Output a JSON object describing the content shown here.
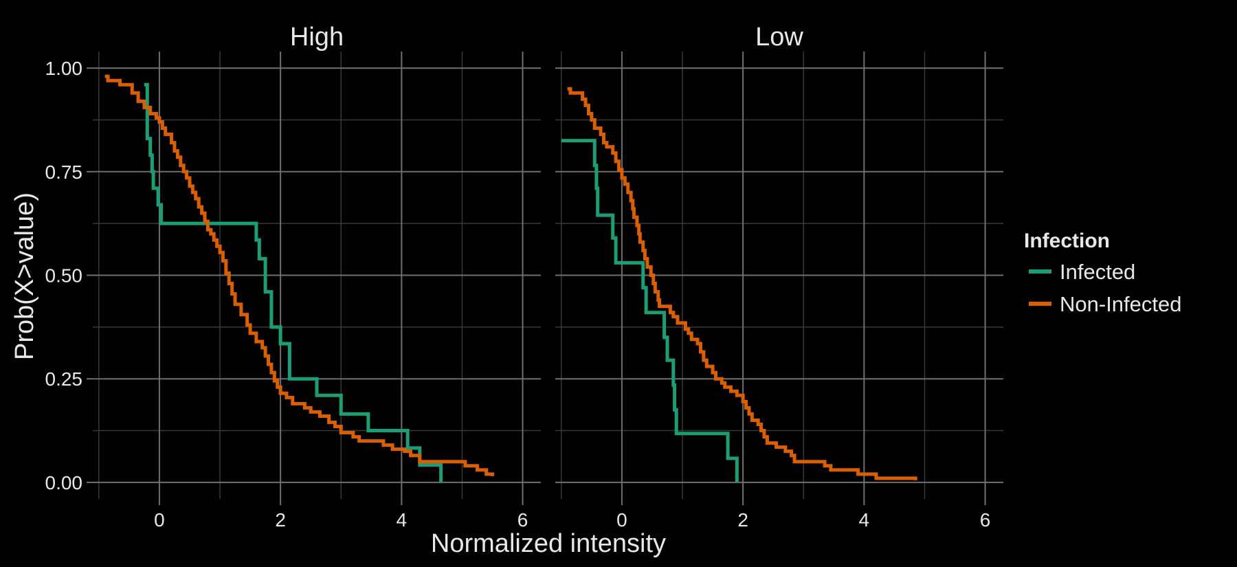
{
  "chart_data": {
    "type": "line",
    "step": true,
    "xlabel": "Normalized intensity",
    "ylabel": "Prob(X>value)",
    "xlim": [
      -1.1,
      6.3
    ],
    "ylim": [
      -0.04,
      1.04
    ],
    "xticks": [
      0,
      2,
      4,
      6
    ],
    "yticks": [
      0.0,
      0.25,
      0.5,
      0.75,
      1.0
    ],
    "ytick_labels": [
      "0.00",
      "0.25",
      "0.50",
      "0.75",
      "1.00"
    ],
    "grid": true,
    "legend": {
      "title": "Infection",
      "position": "right",
      "entries": [
        {
          "name": "Infected",
          "color": "#1b9e77"
        },
        {
          "name": "Non-Infected",
          "color": "#d95f02"
        }
      ]
    },
    "facets": [
      {
        "title": "High",
        "series": [
          {
            "name": "Infected",
            "color": "#1b9e77",
            "points": [
              [
                -0.25,
                0.96
              ],
              [
                -0.2,
                0.83
              ],
              [
                -0.15,
                0.79
              ],
              [
                -0.12,
                0.75
              ],
              [
                -0.1,
                0.71
              ],
              [
                -0.02,
                0.67
              ],
              [
                0.03,
                0.625
              ],
              [
                1.6,
                0.585
              ],
              [
                1.65,
                0.54
              ],
              [
                1.75,
                0.46
              ],
              [
                1.85,
                0.375
              ],
              [
                2.0,
                0.335
              ],
              [
                2.15,
                0.25
              ],
              [
                2.6,
                0.21
              ],
              [
                3.0,
                0.165
              ],
              [
                3.45,
                0.125
              ],
              [
                4.1,
                0.083
              ],
              [
                4.3,
                0.042
              ],
              [
                4.65,
                0.0
              ]
            ]
          },
          {
            "name": "Non-Infected",
            "color": "#d95f02",
            "points": [
              [
                -0.9,
                0.98
              ],
              [
                -0.85,
                0.97
              ],
              [
                -0.65,
                0.96
              ],
              [
                -0.45,
                0.94
              ],
              [
                -0.35,
                0.92
              ],
              [
                -0.25,
                0.905
              ],
              [
                -0.15,
                0.89
              ],
              [
                -0.05,
                0.88
              ],
              [
                0.0,
                0.87
              ],
              [
                0.05,
                0.855
              ],
              [
                0.1,
                0.84
              ],
              [
                0.2,
                0.82
              ],
              [
                0.25,
                0.8
              ],
              [
                0.3,
                0.785
              ],
              [
                0.35,
                0.765
              ],
              [
                0.4,
                0.75
              ],
              [
                0.45,
                0.735
              ],
              [
                0.5,
                0.715
              ],
              [
                0.55,
                0.7
              ],
              [
                0.6,
                0.685
              ],
              [
                0.65,
                0.665
              ],
              [
                0.7,
                0.65
              ],
              [
                0.75,
                0.63
              ],
              [
                0.8,
                0.61
              ],
              [
                0.85,
                0.6
              ],
              [
                0.9,
                0.585
              ],
              [
                0.95,
                0.57
              ],
              [
                1.0,
                0.555
              ],
              [
                1.05,
                0.535
              ],
              [
                1.1,
                0.505
              ],
              [
                1.15,
                0.48
              ],
              [
                1.2,
                0.455
              ],
              [
                1.25,
                0.43
              ],
              [
                1.35,
                0.405
              ],
              [
                1.45,
                0.38
              ],
              [
                1.5,
                0.36
              ],
              [
                1.6,
                0.34
              ],
              [
                1.7,
                0.325
              ],
              [
                1.75,
                0.305
              ],
              [
                1.8,
                0.285
              ],
              [
                1.85,
                0.265
              ],
              [
                1.9,
                0.245
              ],
              [
                1.95,
                0.23
              ],
              [
                2.0,
                0.215
              ],
              [
                2.1,
                0.205
              ],
              [
                2.2,
                0.19
              ],
              [
                2.4,
                0.18
              ],
              [
                2.5,
                0.17
              ],
              [
                2.65,
                0.16
              ],
              [
                2.8,
                0.145
              ],
              [
                2.9,
                0.135
              ],
              [
                3.0,
                0.12
              ],
              [
                3.2,
                0.11
              ],
              [
                3.3,
                0.1
              ],
              [
                3.7,
                0.09
              ],
              [
                3.85,
                0.08
              ],
              [
                4.05,
                0.075
              ],
              [
                4.15,
                0.065
              ],
              [
                4.3,
                0.05
              ],
              [
                5.05,
                0.04
              ],
              [
                5.25,
                0.03
              ],
              [
                5.4,
                0.02
              ],
              [
                5.5,
                0.015
              ]
            ]
          }
        ]
      },
      {
        "title": "Low",
        "series": [
          {
            "name": "Infected",
            "color": "#1b9e77",
            "points": [
              [
                -1.0,
                0.825
              ],
              [
                -0.45,
                0.765
              ],
              [
                -0.42,
                0.71
              ],
              [
                -0.4,
                0.645
              ],
              [
                -0.15,
                0.59
              ],
              [
                -0.1,
                0.53
              ],
              [
                0.35,
                0.47
              ],
              [
                0.4,
                0.41
              ],
              [
                0.7,
                0.35
              ],
              [
                0.75,
                0.295
              ],
              [
                0.85,
                0.235
              ],
              [
                0.87,
                0.175
              ],
              [
                0.9,
                0.118
              ],
              [
                1.75,
                0.058
              ],
              [
                1.9,
                0.0
              ]
            ]
          },
          {
            "name": "Non-Infected",
            "color": "#d95f02",
            "points": [
              [
                -0.9,
                0.95
              ],
              [
                -0.85,
                0.94
              ],
              [
                -0.65,
                0.925
              ],
              [
                -0.6,
                0.91
              ],
              [
                -0.55,
                0.89
              ],
              [
                -0.5,
                0.875
              ],
              [
                -0.45,
                0.855
              ],
              [
                -0.35,
                0.84
              ],
              [
                -0.3,
                0.82
              ],
              [
                -0.25,
                0.81
              ],
              [
                -0.15,
                0.795
              ],
              [
                -0.1,
                0.775
              ],
              [
                -0.05,
                0.755
              ],
              [
                0.0,
                0.735
              ],
              [
                0.05,
                0.72
              ],
              [
                0.1,
                0.7
              ],
              [
                0.15,
                0.68
              ],
              [
                0.18,
                0.66
              ],
              [
                0.2,
                0.64
              ],
              [
                0.25,
                0.62
              ],
              [
                0.28,
                0.6
              ],
              [
                0.3,
                0.58
              ],
              [
                0.35,
                0.56
              ],
              [
                0.38,
                0.54
              ],
              [
                0.42,
                0.52
              ],
              [
                0.48,
                0.5
              ],
              [
                0.52,
                0.48
              ],
              [
                0.55,
                0.46
              ],
              [
                0.6,
                0.44
              ],
              [
                0.62,
                0.425
              ],
              [
                0.8,
                0.41
              ],
              [
                0.85,
                0.4
              ],
              [
                0.92,
                0.385
              ],
              [
                1.05,
                0.37
              ],
              [
                1.1,
                0.36
              ],
              [
                1.15,
                0.345
              ],
              [
                1.25,
                0.335
              ],
              [
                1.3,
                0.315
              ],
              [
                1.35,
                0.295
              ],
              [
                1.4,
                0.28
              ],
              [
                1.5,
                0.265
              ],
              [
                1.55,
                0.25
              ],
              [
                1.65,
                0.24
              ],
              [
                1.7,
                0.23
              ],
              [
                1.8,
                0.22
              ],
              [
                1.9,
                0.21
              ],
              [
                2.0,
                0.195
              ],
              [
                2.05,
                0.18
              ],
              [
                2.1,
                0.165
              ],
              [
                2.15,
                0.15
              ],
              [
                2.25,
                0.14
              ],
              [
                2.3,
                0.125
              ],
              [
                2.35,
                0.11
              ],
              [
                2.4,
                0.095
              ],
              [
                2.55,
                0.085
              ],
              [
                2.7,
                0.075
              ],
              [
                2.8,
                0.065
              ],
              [
                2.85,
                0.05
              ],
              [
                3.35,
                0.04
              ],
              [
                3.45,
                0.03
              ],
              [
                3.9,
                0.02
              ],
              [
                4.2,
                0.01
              ],
              [
                4.85,
                0.005
              ]
            ]
          }
        ]
      }
    ]
  }
}
